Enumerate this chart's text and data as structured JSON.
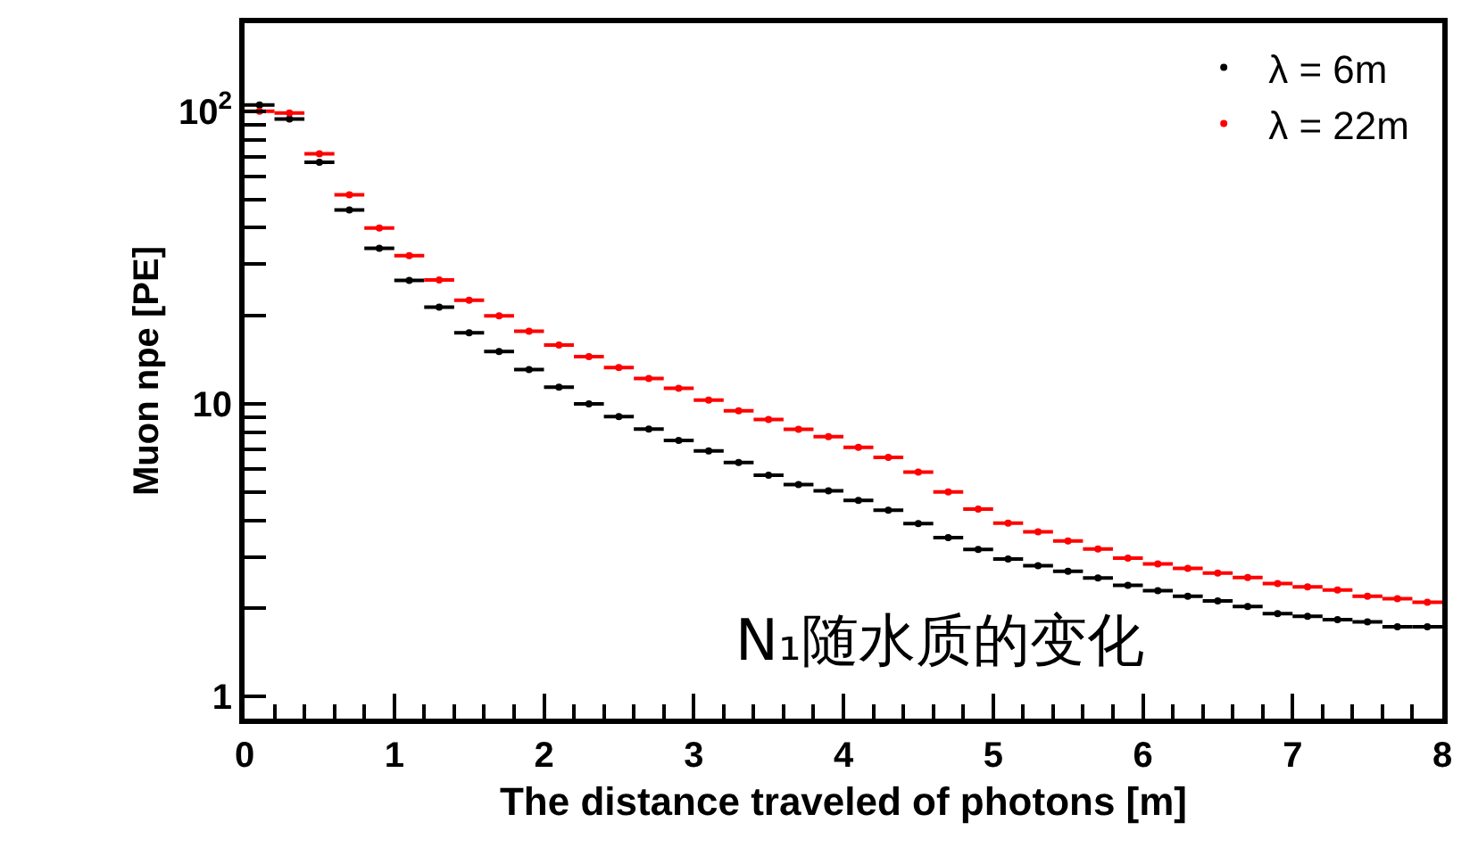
{
  "chart_data": {
    "type": "scatter",
    "xlabel": "The distance traveled of photons [m]",
    "ylabel": "Muon npe [PE]",
    "x": [
      0.1,
      0.3,
      0.5,
      0.7,
      0.9,
      1.1,
      1.3,
      1.5,
      1.7,
      1.9,
      2.1,
      2.3,
      2.5,
      2.7,
      2.9,
      3.1,
      3.3,
      3.5,
      3.7,
      3.9,
      4.1,
      4.3,
      4.5,
      4.7,
      4.9,
      5.1,
      5.3,
      5.5,
      5.7,
      5.9,
      6.1,
      6.3,
      6.5,
      6.7,
      6.9,
      7.1,
      7.3,
      7.5,
      7.7,
      7.9
    ],
    "series": [
      {
        "name": "λ = 6m",
        "color": "#000000",
        "values": [
          105,
          94,
          67,
          46,
          34,
          26.4,
          21.4,
          17.5,
          15.1,
          13.1,
          11.4,
          10.0,
          9.05,
          8.2,
          7.5,
          6.9,
          6.3,
          5.7,
          5.3,
          5.04,
          4.68,
          4.33,
          3.9,
          3.49,
          3.18,
          2.95,
          2.8,
          2.68,
          2.54,
          2.4,
          2.3,
          2.2,
          2.12,
          2.03,
          1.92,
          1.88,
          1.83,
          1.8,
          1.73,
          1.73
        ],
        "xerrors": [
          0.1,
          0.1,
          0.1,
          0.1,
          0.1,
          0.1,
          0.1,
          0.1,
          0.1,
          0.1,
          0.1,
          0.1,
          0.1,
          0.1,
          0.1,
          0.1,
          0.1,
          0.1,
          0.1,
          0.1,
          0.1,
          0.1,
          0.1,
          0.1,
          0.1,
          0.1,
          0.1,
          0.1,
          0.1,
          0.1,
          0.1,
          0.1,
          0.1,
          0.1,
          0.1,
          0.1,
          0.1,
          0.1,
          0.1,
          0.1
        ]
      },
      {
        "name": "λ = 22m",
        "color": "#ff0000",
        "values": [
          100,
          98.6,
          71.5,
          51.8,
          39.9,
          32.1,
          26.5,
          22.6,
          20.0,
          17.7,
          15.9,
          14.5,
          13.3,
          12.2,
          11.3,
          10.3,
          9.47,
          8.85,
          8.18,
          7.73,
          7.1,
          6.56,
          5.85,
          5.0,
          4.37,
          3.91,
          3.65,
          3.4,
          3.19,
          2.97,
          2.84,
          2.74,
          2.64,
          2.55,
          2.43,
          2.37,
          2.31,
          2.2,
          2.16,
          2.1
        ],
        "xerrors": [
          0.1,
          0.1,
          0.1,
          0.1,
          0.1,
          0.1,
          0.1,
          0.1,
          0.1,
          0.1,
          0.1,
          0.1,
          0.1,
          0.1,
          0.1,
          0.1,
          0.1,
          0.1,
          0.1,
          0.1,
          0.1,
          0.1,
          0.1,
          0.1,
          0.1,
          0.1,
          0.1,
          0.1,
          0.1,
          0.1,
          0.1,
          0.1,
          0.1,
          0.1,
          0.1,
          0.1,
          0.1,
          0.1,
          0.1,
          0.1
        ]
      }
    ],
    "annotations": [
      "N₁随水质的变化"
    ],
    "xlim": [
      0,
      8
    ],
    "xticks": [
      0,
      1,
      2,
      3,
      4,
      5,
      6,
      7,
      8
    ],
    "ylim": [
      0.84,
      200
    ],
    "yticks": [
      {
        "value": 1,
        "label": "1"
      },
      {
        "value": 2,
        "label": null
      },
      {
        "value": 3,
        "label": null
      },
      {
        "value": 4,
        "label": null
      },
      {
        "value": 5,
        "label": null
      },
      {
        "value": 6,
        "label": null
      },
      {
        "value": 7,
        "label": null
      },
      {
        "value": 8,
        "label": null
      },
      {
        "value": 9,
        "label": null
      },
      {
        "value": 10,
        "label": "10"
      },
      {
        "value": 20,
        "label": null
      },
      {
        "value": 30,
        "label": null
      },
      {
        "value": 40,
        "label": null
      },
      {
        "value": 50,
        "label": null
      },
      {
        "value": 60,
        "label": null
      },
      {
        "value": 70,
        "label": null
      },
      {
        "value": 80,
        "label": null
      },
      {
        "value": 90,
        "label": null
      },
      {
        "value": 100,
        "label": "10$^{2}$"
      }
    ],
    "marker": "circle",
    "log": "y",
    "legend": "top right"
  }
}
